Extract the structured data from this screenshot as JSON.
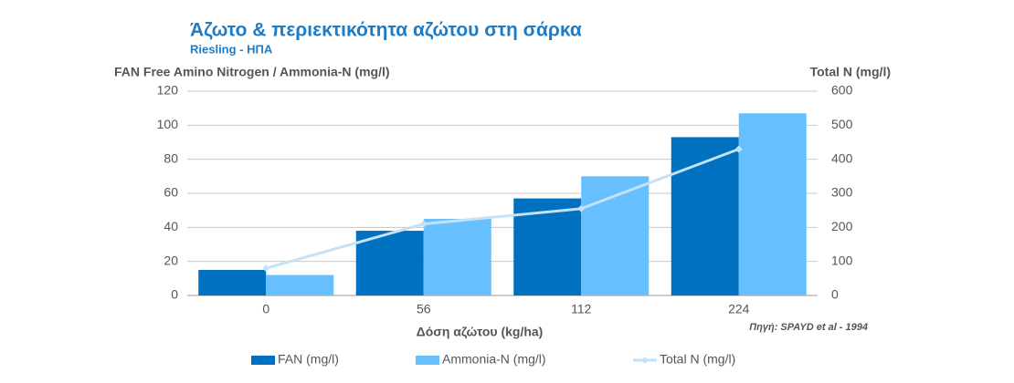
{
  "chart_data": {
    "type": "bar",
    "title": "Άζωτο & περιεκτικότητα αζώτου  στη σάρκα",
    "subtitle": "Riesling - ΗΠΑ",
    "y_label": "FAN Free Amino Nitrogen / Ammonia-N (mg/l)",
    "y2_label": "Total N (mg/l)",
    "x_label": "Δόση αζώτου (kg/ha)",
    "source": "Πηγή: SPAYD et al - 1994",
    "categories": [
      "0",
      "56",
      "112",
      "224"
    ],
    "series": [
      {
        "name": "FAN (mg/l)",
        "type": "bar",
        "color": "#0070c0",
        "values": [
          15,
          38,
          57,
          93
        ]
      },
      {
        "name": "Ammonia-N (mg/l)",
        "type": "bar",
        "color": "#66bfff",
        "values": [
          12,
          45,
          70,
          107
        ]
      },
      {
        "name": "Total N (mg/l)",
        "type": "line",
        "axis": "y2",
        "color": "#c3e2f7",
        "values": [
          80,
          210,
          255,
          430
        ]
      }
    ],
    "ylim": [
      0,
      120
    ],
    "yticks": [
      0,
      20,
      40,
      60,
      80,
      100,
      120
    ],
    "y2lim": [
      0,
      600
    ],
    "y2ticks": [
      0,
      100,
      200,
      300,
      400,
      500,
      600
    ],
    "grid": true,
    "legend": "bottom"
  }
}
